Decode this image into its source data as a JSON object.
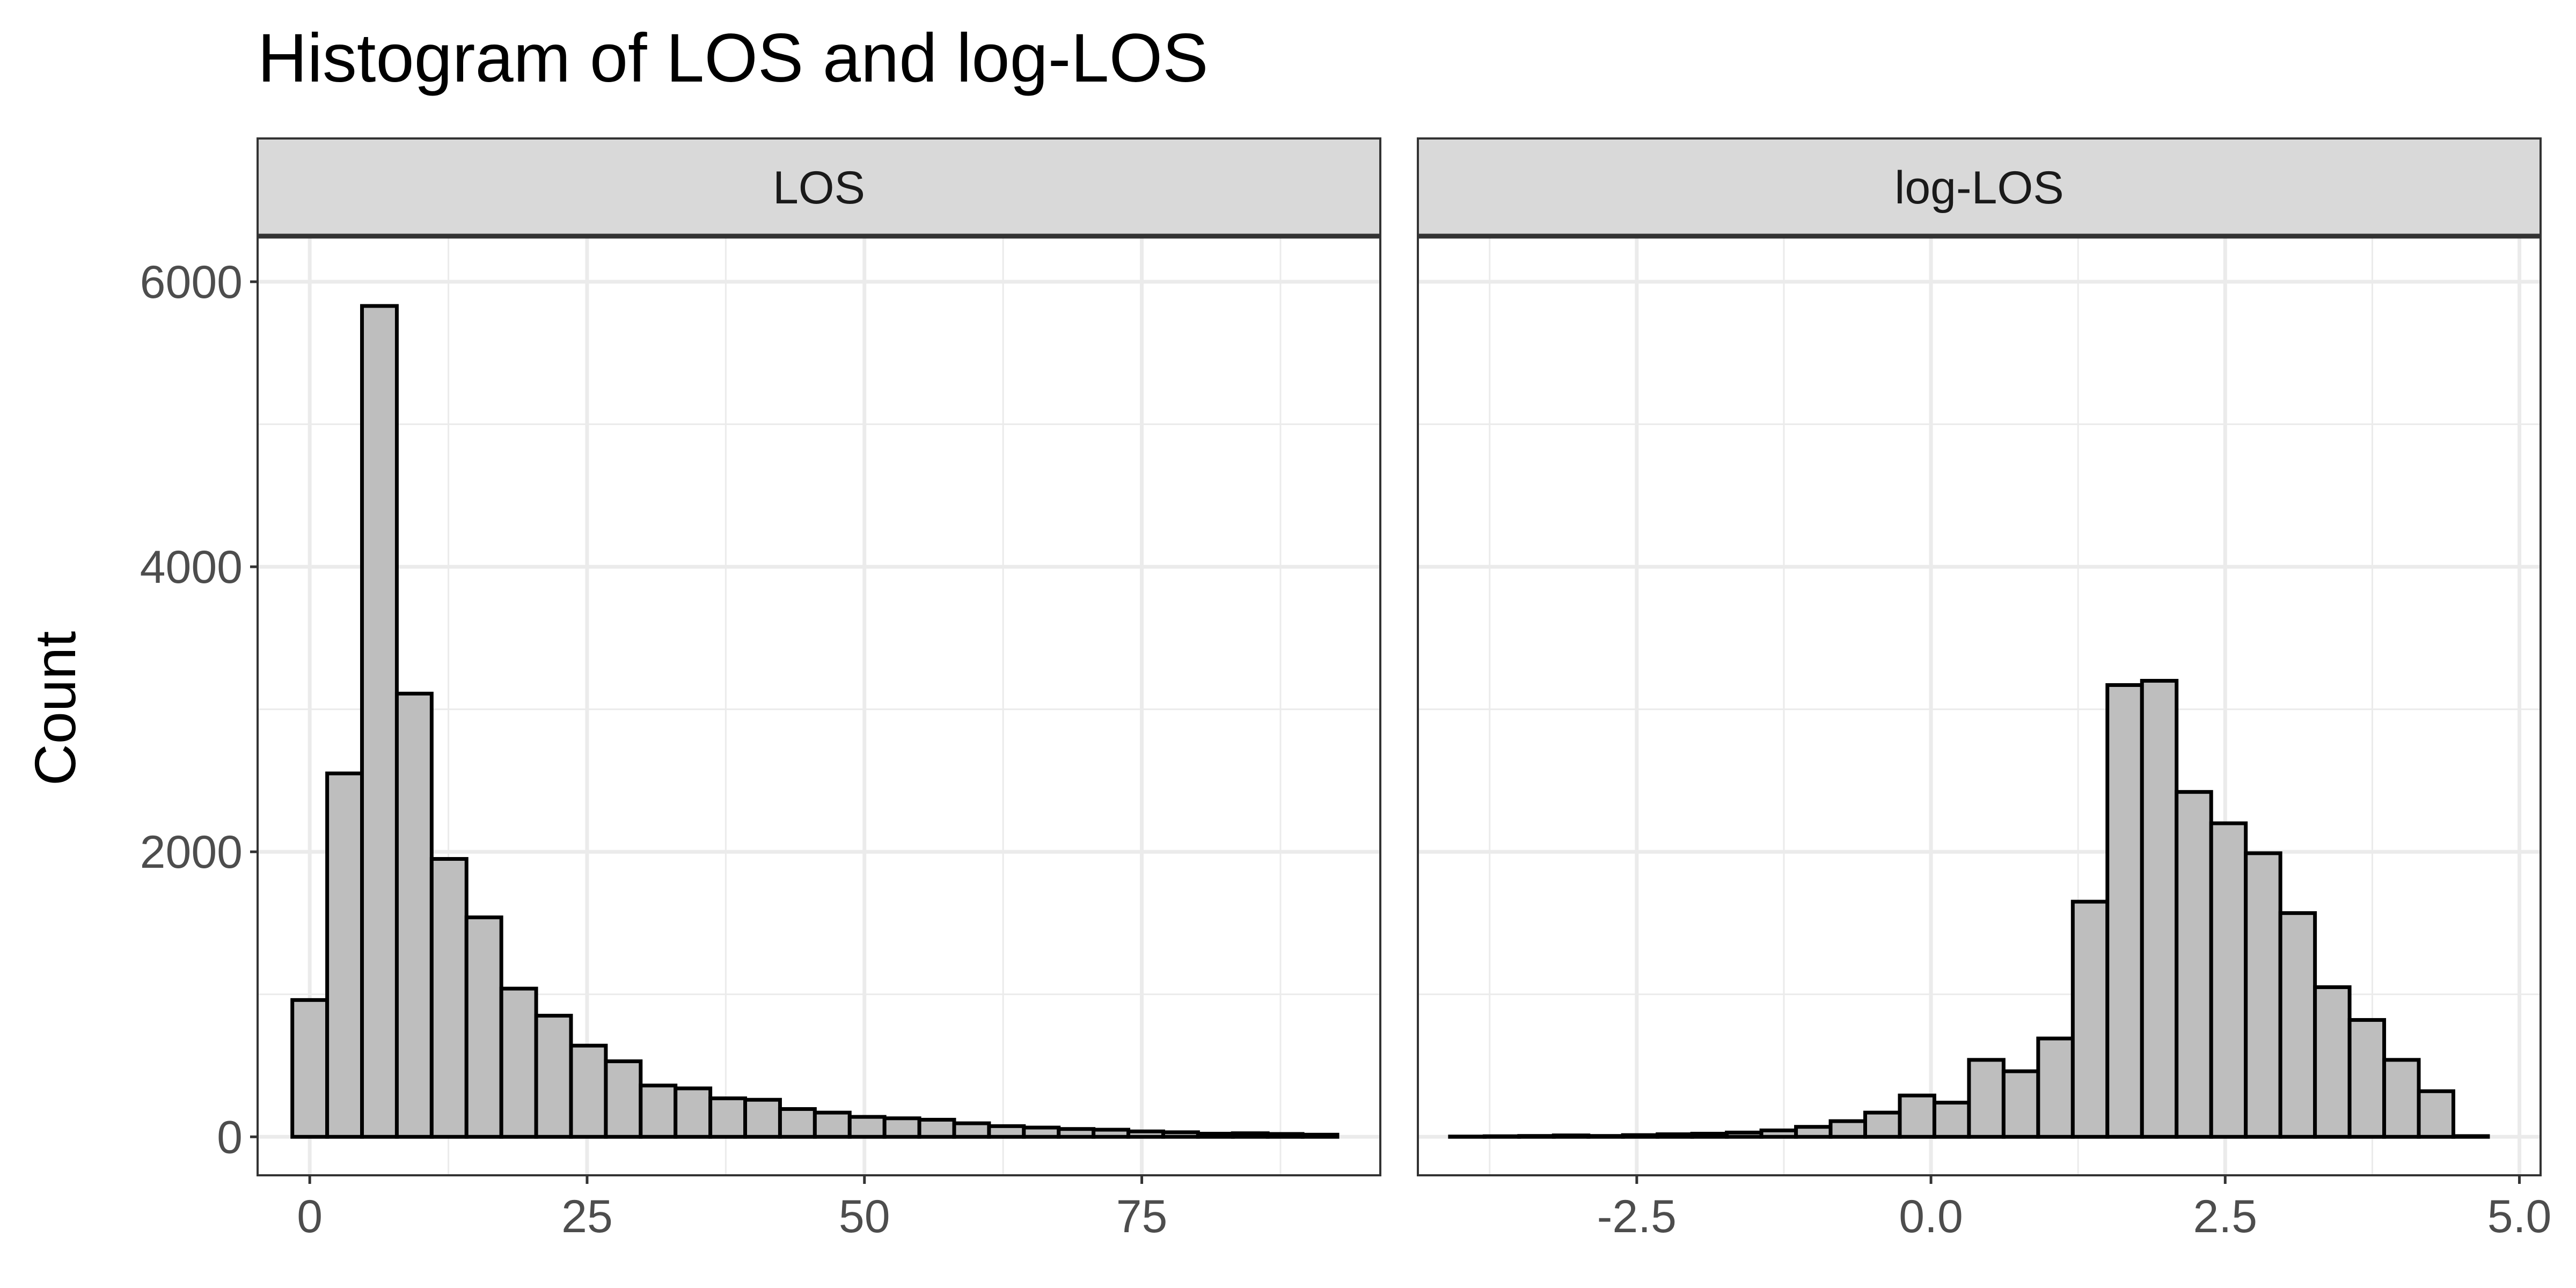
{
  "chart_data": {
    "type": "bar",
    "title": "Histogram of LOS and log-LOS",
    "ylabel": "Count",
    "xlabel": "",
    "ylim": [
      -270,
      6320
    ],
    "yticks": [
      0,
      2000,
      4000,
      6000
    ],
    "ytick_labels": [
      "0",
      "2000",
      "4000",
      "6000"
    ],
    "grid": true,
    "bar_color": "#bebebe",
    "bar_stroke": "#000000",
    "panels": [
      {
        "strip_label": "LOS",
        "xlim": [
          -4.7,
          96.5
        ],
        "xticks": [
          0,
          25,
          50,
          75
        ],
        "xtick_labels": [
          "0",
          "25",
          "50",
          "75"
        ],
        "bin_width": 3.14,
        "bin_centers": [
          0,
          3.14,
          6.28,
          9.42,
          12.56,
          15.7,
          18.84,
          21.98,
          25.12,
          28.26,
          31.4,
          34.54,
          37.68,
          40.82,
          43.96,
          47.1,
          50.24,
          53.38,
          56.52,
          59.66,
          62.8,
          65.94,
          69.08,
          72.22,
          75.36,
          78.5,
          81.64,
          84.78,
          87.92,
          91.06
        ],
        "values": [
          960,
          2550,
          5830,
          3110,
          1950,
          1540,
          1040,
          850,
          640,
          530,
          360,
          340,
          270,
          260,
          195,
          170,
          140,
          130,
          120,
          95,
          75,
          65,
          55,
          50,
          38,
          32,
          22,
          25,
          20,
          15
        ]
      },
      {
        "strip_label": "log-LOS",
        "xlim": [
          -4.36,
          5.18
        ],
        "xticks": [
          -2.5,
          0.0,
          2.5,
          5.0
        ],
        "xtick_labels": [
          "-2.5",
          "0.0",
          "2.5",
          "5.0"
        ],
        "bin_width": 0.294,
        "bin_centers": [
          -3.94,
          -3.646,
          -3.352,
          -3.058,
          -2.764,
          -2.47,
          -2.176,
          -1.882,
          -1.588,
          -1.294,
          -1.0,
          -0.706,
          -0.412,
          -0.118,
          0.176,
          0.47,
          0.764,
          1.058,
          1.352,
          1.646,
          1.94,
          2.234,
          2.528,
          2.822,
          3.116,
          3.41,
          3.704,
          3.998,
          4.292,
          4.586
        ],
        "values": [
          2,
          4,
          6,
          10,
          6,
          12,
          18,
          22,
          30,
          45,
          70,
          110,
          170,
          290,
          240,
          540,
          460,
          690,
          1650,
          3170,
          3200,
          2420,
          2200,
          1990,
          1570,
          1050,
          820,
          540,
          320,
          5
        ]
      }
    ]
  }
}
